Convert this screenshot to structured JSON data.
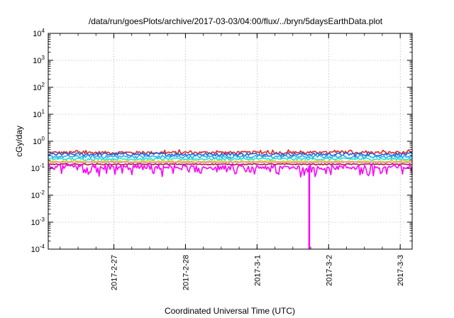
{
  "chart_data": {
    "type": "area",
    "title": "/data/run/goesPlots/archive/2017-03-03/04:00/flux/../bryn/5daysEarthData.plot",
    "xlabel": "Coordinated Universal Time (UTC)",
    "ylabel": "cGy/day",
    "yscale": "log",
    "ylim": [
      0.0001,
      10000
    ],
    "y_ticks": [
      {
        "base": "10",
        "exp": "-4",
        "value": 0.0001
      },
      {
        "base": "10",
        "exp": "-3",
        "value": 0.001
      },
      {
        "base": "10",
        "exp": "-2",
        "value": 0.01
      },
      {
        "base": "10",
        "exp": "-1",
        "value": 0.1
      },
      {
        "base": "10",
        "exp": "0",
        "value": 1
      },
      {
        "base": "10",
        "exp": "1",
        "value": 10
      },
      {
        "base": "10",
        "exp": "2",
        "value": 100
      },
      {
        "base": "10",
        "exp": "3",
        "value": 1000
      },
      {
        "base": "10",
        "exp": "4",
        "value": 10000
      }
    ],
    "xlim": [
      "2017-02-26T02:00",
      "2017-03-03T04:00"
    ],
    "x_ticks": [
      {
        "label": "2017-2-27",
        "value": "2017-02-27T00:00"
      },
      {
        "label": "2017-2-28",
        "value": "2017-02-28T00:00"
      },
      {
        "label": "2017-3-1",
        "value": "2017-03-01T00:00"
      },
      {
        "label": "2017-3-2",
        "value": "2017-03-02T00:00"
      },
      {
        "label": "2017-3-3",
        "value": "2017-03-03T00:00"
      }
    ],
    "grid": true,
    "legend": "none",
    "series": [
      {
        "color": "#e8241e",
        "level": 0.38,
        "jitter": 0.12
      },
      {
        "color": "#1f5fe0",
        "level": 0.33,
        "jitter": 0.14
      },
      {
        "color": "#29aaf0",
        "level": 0.27,
        "jitter": 0.13
      },
      {
        "color": "#2be0d0",
        "level": 0.22,
        "jitter": 0.1
      },
      {
        "color": "#d8d02a",
        "level": 0.18,
        "jitter": 0.07
      },
      {
        "color": "#f08a9c",
        "level": 0.165,
        "jitter": 0.05
      },
      {
        "color": "#a81e3c",
        "level": 0.14,
        "jitter": 0.05
      },
      {
        "color": "#ff00ff",
        "level": 0.11,
        "jitter": 0.22
      }
    ],
    "dropout": {
      "x": "2017-03-01T17:30",
      "y_min": 0.0001,
      "color": "#ff00ff"
    }
  }
}
